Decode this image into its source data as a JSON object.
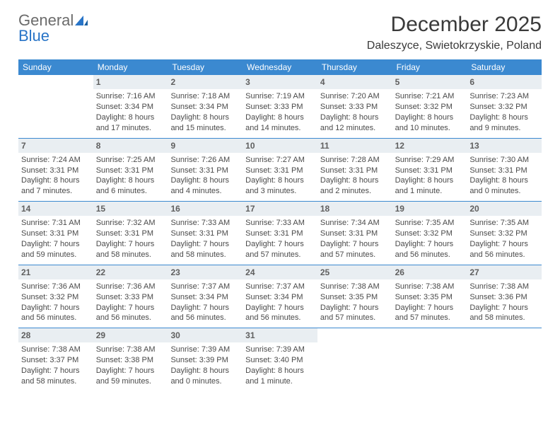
{
  "brand": {
    "part1": "General",
    "part2": "Blue"
  },
  "title": "December 2025",
  "location": "Daleszyce, Swietokrzyskie, Poland",
  "colors": {
    "header_bg": "#3b89d0",
    "header_text": "#ffffff",
    "daynum_bg": "#e9eef2",
    "border": "#3b89d0",
    "text": "#4a4a4a",
    "brand_gray": "#6b6b6b",
    "brand_blue": "#2874c7"
  },
  "weekdays": [
    "Sunday",
    "Monday",
    "Tuesday",
    "Wednesday",
    "Thursday",
    "Friday",
    "Saturday"
  ],
  "weeks": [
    [
      {
        "day": "",
        "lines": []
      },
      {
        "day": "1",
        "lines": [
          "Sunrise: 7:16 AM",
          "Sunset: 3:34 PM",
          "Daylight: 8 hours and 17 minutes."
        ]
      },
      {
        "day": "2",
        "lines": [
          "Sunrise: 7:18 AM",
          "Sunset: 3:34 PM",
          "Daylight: 8 hours and 15 minutes."
        ]
      },
      {
        "day": "3",
        "lines": [
          "Sunrise: 7:19 AM",
          "Sunset: 3:33 PM",
          "Daylight: 8 hours and 14 minutes."
        ]
      },
      {
        "day": "4",
        "lines": [
          "Sunrise: 7:20 AM",
          "Sunset: 3:33 PM",
          "Daylight: 8 hours and 12 minutes."
        ]
      },
      {
        "day": "5",
        "lines": [
          "Sunrise: 7:21 AM",
          "Sunset: 3:32 PM",
          "Daylight: 8 hours and 10 minutes."
        ]
      },
      {
        "day": "6",
        "lines": [
          "Sunrise: 7:23 AM",
          "Sunset: 3:32 PM",
          "Daylight: 8 hours and 9 minutes."
        ]
      }
    ],
    [
      {
        "day": "7",
        "lines": [
          "Sunrise: 7:24 AM",
          "Sunset: 3:31 PM",
          "Daylight: 8 hours and 7 minutes."
        ]
      },
      {
        "day": "8",
        "lines": [
          "Sunrise: 7:25 AM",
          "Sunset: 3:31 PM",
          "Daylight: 8 hours and 6 minutes."
        ]
      },
      {
        "day": "9",
        "lines": [
          "Sunrise: 7:26 AM",
          "Sunset: 3:31 PM",
          "Daylight: 8 hours and 4 minutes."
        ]
      },
      {
        "day": "10",
        "lines": [
          "Sunrise: 7:27 AM",
          "Sunset: 3:31 PM",
          "Daylight: 8 hours and 3 minutes."
        ]
      },
      {
        "day": "11",
        "lines": [
          "Sunrise: 7:28 AM",
          "Sunset: 3:31 PM",
          "Daylight: 8 hours and 2 minutes."
        ]
      },
      {
        "day": "12",
        "lines": [
          "Sunrise: 7:29 AM",
          "Sunset: 3:31 PM",
          "Daylight: 8 hours and 1 minute."
        ]
      },
      {
        "day": "13",
        "lines": [
          "Sunrise: 7:30 AM",
          "Sunset: 3:31 PM",
          "Daylight: 8 hours and 0 minutes."
        ]
      }
    ],
    [
      {
        "day": "14",
        "lines": [
          "Sunrise: 7:31 AM",
          "Sunset: 3:31 PM",
          "Daylight: 7 hours and 59 minutes."
        ]
      },
      {
        "day": "15",
        "lines": [
          "Sunrise: 7:32 AM",
          "Sunset: 3:31 PM",
          "Daylight: 7 hours and 58 minutes."
        ]
      },
      {
        "day": "16",
        "lines": [
          "Sunrise: 7:33 AM",
          "Sunset: 3:31 PM",
          "Daylight: 7 hours and 58 minutes."
        ]
      },
      {
        "day": "17",
        "lines": [
          "Sunrise: 7:33 AM",
          "Sunset: 3:31 PM",
          "Daylight: 7 hours and 57 minutes."
        ]
      },
      {
        "day": "18",
        "lines": [
          "Sunrise: 7:34 AM",
          "Sunset: 3:31 PM",
          "Daylight: 7 hours and 57 minutes."
        ]
      },
      {
        "day": "19",
        "lines": [
          "Sunrise: 7:35 AM",
          "Sunset: 3:32 PM",
          "Daylight: 7 hours and 56 minutes."
        ]
      },
      {
        "day": "20",
        "lines": [
          "Sunrise: 7:35 AM",
          "Sunset: 3:32 PM",
          "Daylight: 7 hours and 56 minutes."
        ]
      }
    ],
    [
      {
        "day": "21",
        "lines": [
          "Sunrise: 7:36 AM",
          "Sunset: 3:32 PM",
          "Daylight: 7 hours and 56 minutes."
        ]
      },
      {
        "day": "22",
        "lines": [
          "Sunrise: 7:36 AM",
          "Sunset: 3:33 PM",
          "Daylight: 7 hours and 56 minutes."
        ]
      },
      {
        "day": "23",
        "lines": [
          "Sunrise: 7:37 AM",
          "Sunset: 3:34 PM",
          "Daylight: 7 hours and 56 minutes."
        ]
      },
      {
        "day": "24",
        "lines": [
          "Sunrise: 7:37 AM",
          "Sunset: 3:34 PM",
          "Daylight: 7 hours and 56 minutes."
        ]
      },
      {
        "day": "25",
        "lines": [
          "Sunrise: 7:38 AM",
          "Sunset: 3:35 PM",
          "Daylight: 7 hours and 57 minutes."
        ]
      },
      {
        "day": "26",
        "lines": [
          "Sunrise: 7:38 AM",
          "Sunset: 3:35 PM",
          "Daylight: 7 hours and 57 minutes."
        ]
      },
      {
        "day": "27",
        "lines": [
          "Sunrise: 7:38 AM",
          "Sunset: 3:36 PM",
          "Daylight: 7 hours and 58 minutes."
        ]
      }
    ],
    [
      {
        "day": "28",
        "lines": [
          "Sunrise: 7:38 AM",
          "Sunset: 3:37 PM",
          "Daylight: 7 hours and 58 minutes."
        ]
      },
      {
        "day": "29",
        "lines": [
          "Sunrise: 7:38 AM",
          "Sunset: 3:38 PM",
          "Daylight: 7 hours and 59 minutes."
        ]
      },
      {
        "day": "30",
        "lines": [
          "Sunrise: 7:39 AM",
          "Sunset: 3:39 PM",
          "Daylight: 8 hours and 0 minutes."
        ]
      },
      {
        "day": "31",
        "lines": [
          "Sunrise: 7:39 AM",
          "Sunset: 3:40 PM",
          "Daylight: 8 hours and 1 minute."
        ]
      },
      {
        "day": "",
        "lines": []
      },
      {
        "day": "",
        "lines": []
      },
      {
        "day": "",
        "lines": []
      }
    ]
  ]
}
